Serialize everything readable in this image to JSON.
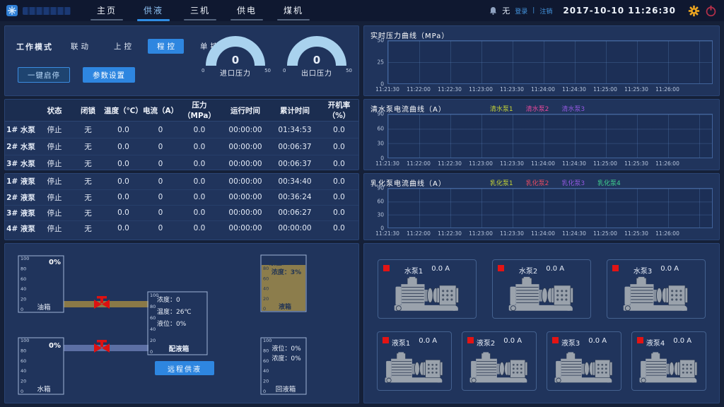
{
  "header": {
    "nav": [
      {
        "label": "主页",
        "active": false
      },
      {
        "label": "供液",
        "active": true
      },
      {
        "label": "三机",
        "active": false
      },
      {
        "label": "供电",
        "active": false
      },
      {
        "label": "煤机",
        "active": false
      }
    ],
    "alarm_text": "无",
    "login": "登录",
    "logout": "注销",
    "datetime": "2017-10-10  11:26:30"
  },
  "control": {
    "mode_label": "工作模式",
    "modes": [
      {
        "label": "联动",
        "active": false
      },
      {
        "label": "上控",
        "active": false
      },
      {
        "label": "程控",
        "active": true
      },
      {
        "label": "单控",
        "active": false
      }
    ],
    "action_buttons": [
      {
        "label": "一键启停",
        "style": "outline"
      },
      {
        "label": "参数设置",
        "style": "solid"
      }
    ],
    "gauges": [
      {
        "label": "进口压力",
        "value": "0",
        "min": "0",
        "max": "50"
      },
      {
        "label": "出口压力",
        "value": "0",
        "min": "0",
        "max": "50"
      }
    ]
  },
  "pump_table": {
    "columns": [
      "",
      "状态",
      "闭锁",
      "温度（℃）",
      "电流（A）",
      "压力（MPa）",
      "运行时间",
      "累计时间",
      "开机率（%）"
    ],
    "col_widths": [
      "9%",
      "10%",
      "9%",
      "11%",
      "10%",
      "12%",
      "14%",
      "14%",
      "11%"
    ],
    "water_rows": [
      {
        "name": "1# 水泵",
        "cells": [
          "停止",
          "无",
          "0.0",
          "0",
          "0.0",
          "00:00:00",
          "01:34:53",
          "0.0"
        ]
      },
      {
        "name": "2# 水泵",
        "cells": [
          "停止",
          "无",
          "0.0",
          "0",
          "0.0",
          "00:00:00",
          "00:06:37",
          "0.0"
        ]
      },
      {
        "name": "3# 水泵",
        "cells": [
          "停止",
          "无",
          "0.0",
          "0",
          "0.0",
          "00:00:00",
          "00:06:37",
          "0.0"
        ]
      }
    ],
    "liquid_rows": [
      {
        "name": "1# 液泵",
        "cells": [
          "停止",
          "无",
          "0.0",
          "0",
          "0.0",
          "00:00:00",
          "00:34:40",
          "0.0"
        ]
      },
      {
        "name": "2# 液泵",
        "cells": [
          "停止",
          "无",
          "0.0",
          "0",
          "0.0",
          "00:00:00",
          "00:36:24",
          "0.0"
        ]
      },
      {
        "name": "3# 液泵",
        "cells": [
          "停止",
          "无",
          "0.0",
          "0",
          "0.0",
          "00:00:00",
          "00:06:27",
          "0.0"
        ]
      },
      {
        "name": "4# 液泵",
        "cells": [
          "停止",
          "无",
          "0.0",
          "0",
          "0.0",
          "00:00:00",
          "00:00:00",
          "0.0"
        ]
      }
    ]
  },
  "chart_data": [
    {
      "type": "line",
      "title": "实时压力曲线（MPa）",
      "ylim": [
        0,
        50
      ],
      "y_ticks": [
        "50",
        "25",
        "0"
      ],
      "x_ticks": [
        "11:21:30",
        "11:22:00",
        "11:22:30",
        "11:23:00",
        "11:23:30",
        "11:24:00",
        "11:24:30",
        "11:25:00",
        "11:25:30",
        "11:26:00"
      ],
      "grid": true,
      "legend_position": "top",
      "series": []
    },
    {
      "type": "line",
      "title": "清水泵电流曲线（A）",
      "ylim": [
        0,
        90
      ],
      "y_ticks": [
        "90",
        "60",
        "30",
        "0"
      ],
      "x_ticks": [
        "11:21:30",
        "11:22:00",
        "11:22:30",
        "11:23:00",
        "11:23:30",
        "11:24:00",
        "11:24:30",
        "11:25:00",
        "11:25:30",
        "11:26:00"
      ],
      "grid": true,
      "legend_position": "top",
      "series": [
        {
          "name": "清水泵1",
          "color": "#c6d435",
          "values": []
        },
        {
          "name": "清水泵2",
          "color": "#e8489c",
          "values": []
        },
        {
          "name": "清水泵3",
          "color": "#9258e0",
          "values": []
        }
      ]
    },
    {
      "type": "line",
      "title": "乳化泵电流曲线（A）",
      "ylim": [
        0,
        90
      ],
      "y_ticks": [
        "90",
        "60",
        "30",
        "0"
      ],
      "x_ticks": [
        "11:21:30",
        "11:22:00",
        "11:22:30",
        "11:23:00",
        "11:23:30",
        "11:24:00",
        "11:24:30",
        "11:25:00",
        "11:25:30",
        "11:26:00"
      ],
      "grid": true,
      "legend_position": "top",
      "series": [
        {
          "name": "乳化泵1",
          "color": "#c6d435",
          "values": []
        },
        {
          "name": "乳化泵2",
          "color": "#e84b62",
          "values": []
        },
        {
          "name": "乳化泵3",
          "color": "#9258e0",
          "values": []
        },
        {
          "name": "乳化泵4",
          "color": "#3fd08f",
          "values": []
        }
      ]
    }
  ],
  "tanks": {
    "scale": [
      "100",
      "80",
      "60",
      "40",
      "20",
      "0"
    ],
    "oil": {
      "label": "油箱",
      "percent": "0%"
    },
    "water": {
      "label": "水箱",
      "percent": "0%"
    },
    "mixing": {
      "label": "配液箱",
      "concentration": "浓度：0",
      "temperature": "温度：26℃",
      "level": "液位：0%"
    },
    "remote_button": "远程供液",
    "emulsion": {
      "label": "液箱",
      "level": "液位：84%",
      "concentration": "浓度：3%",
      "fill_percent": 84
    },
    "return": {
      "label": "回液箱",
      "level": "液位：0%",
      "concentration": "浓度：0%",
      "fill_percent": 0
    }
  },
  "pump_cards": {
    "water": [
      {
        "name": "水泵1",
        "current": "0.0 A"
      },
      {
        "name": "水泵2",
        "current": "0.0 A"
      },
      {
        "name": "水泵3",
        "current": "0.0 A"
      }
    ],
    "liquid": [
      {
        "name": "液泵1",
        "current": "0.0 A"
      },
      {
        "name": "液泵2",
        "current": "0.0 A"
      },
      {
        "name": "液泵3",
        "current": "0.0 A"
      },
      {
        "name": "液泵4",
        "current": "0.0 A"
      }
    ]
  }
}
